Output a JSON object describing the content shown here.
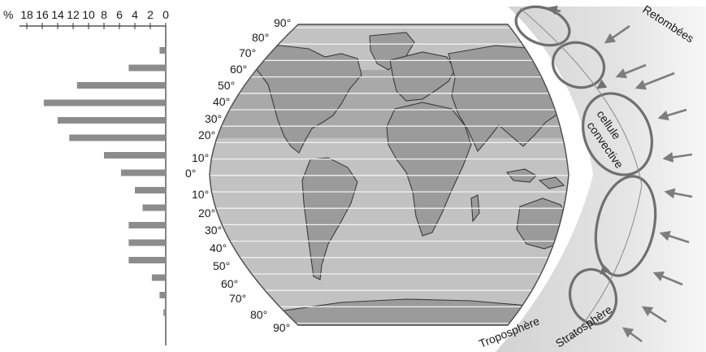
{
  "histogram": {
    "percent_symbol": "%",
    "tick_labels": [
      "18",
      "16",
      "14",
      "12",
      "10",
      "8",
      "6",
      "4",
      "2",
      "0"
    ],
    "bars_percent": [
      0.8,
      4.8,
      11.5,
      15.8,
      14.0,
      12.5,
      8.0,
      5.8,
      4.0,
      3.0,
      4.8,
      4.8,
      4.8,
      1.8,
      0.8,
      0.3
    ]
  },
  "latitude_labels": {
    "north": [
      "90°",
      "80°",
      "70°",
      "60°",
      "50°",
      "40°",
      "30°",
      "20°",
      "10°"
    ],
    "equator": "0°",
    "south": [
      "10°",
      "20°",
      "30°",
      "40°",
      "50°",
      "60°",
      "70°",
      "80°",
      "90°"
    ]
  },
  "labels": {
    "fallout": "Retombées",
    "cell_line1": "cellule",
    "cell_line2": "convective",
    "troposphere": "Troposphère",
    "stratosphere": "Stratosphère"
  },
  "colors": {
    "bar": "#8c8c8c",
    "map_band": "#bdbdbd",
    "map_band_dark": "#a3a3a3",
    "land": "#9a9a9a",
    "arrow": "#7d7d7d"
  }
}
